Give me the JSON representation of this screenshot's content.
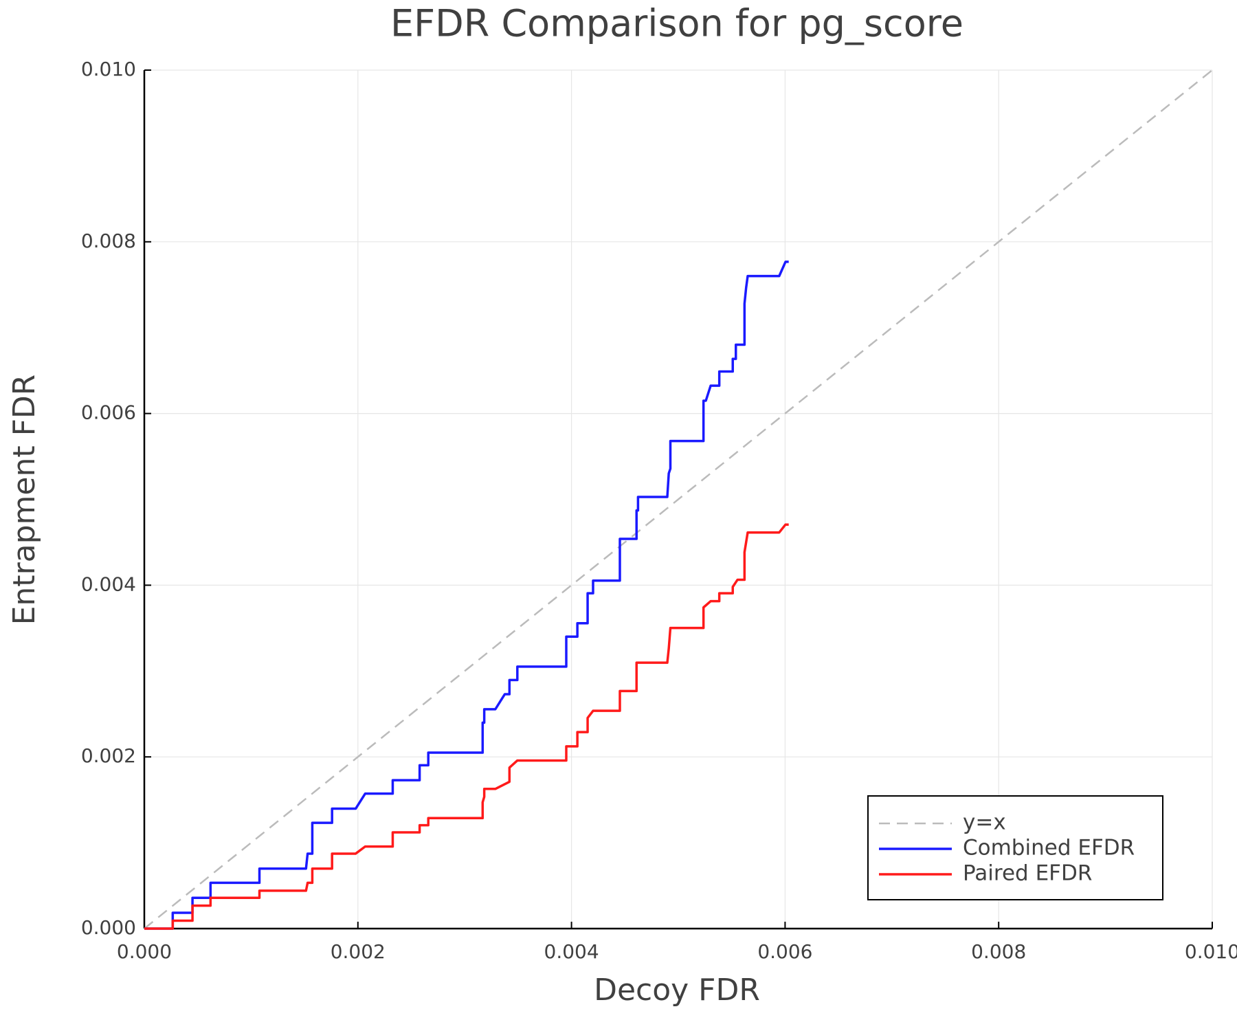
{
  "chart_data": {
    "type": "line",
    "title": "EFDR Comparison for pg_score",
    "xlabel": "Decoy FDR",
    "ylabel": "Entrapment FDR",
    "xlim": [
      0,
      0.01
    ],
    "ylim": [
      0,
      0.01
    ],
    "xticks": [
      {
        "value": 0,
        "label": "0.000"
      },
      {
        "value": 0.002,
        "label": "0.002"
      },
      {
        "value": 0.004,
        "label": "0.004"
      },
      {
        "value": 0.006,
        "label": "0.006"
      },
      {
        "value": 0.008,
        "label": "0.008"
      },
      {
        "value": 0.01,
        "label": "0.010"
      }
    ],
    "yticks": [
      {
        "value": 0,
        "label": "0.000"
      },
      {
        "value": 0.002,
        "label": "0.002"
      },
      {
        "value": 0.004,
        "label": "0.004"
      },
      {
        "value": 0.006,
        "label": "0.006"
      },
      {
        "value": 0.008,
        "label": "0.008"
      },
      {
        "value": 0.01,
        "label": "0.010"
      }
    ],
    "grid": true,
    "legend": "lower right",
    "series": [
      {
        "name": "y=x",
        "color": "#bbbbbb",
        "linestyle": "dashed",
        "x": [
          0,
          0.01
        ],
        "values": [
          0,
          0.01
        ]
      },
      {
        "name": "Combined EFDR",
        "color": "#1a1aff",
        "linestyle": "solid",
        "x": [
          0,
          0.000266,
          0.000266,
          0.000451,
          0.000451,
          0.00062,
          0.00062,
          0.001078,
          0.001078,
          0.001514,
          0.001529,
          0.001573,
          0.001573,
          0.001758,
          0.001758,
          0.001979,
          0.002068,
          0.002326,
          0.002326,
          0.002578,
          0.002578,
          0.002659,
          0.002659,
          0.003168,
          0.003168,
          0.003183,
          0.003183,
          0.003287,
          0.003375,
          0.003419,
          0.003419,
          0.003493,
          0.003493,
          0.003951,
          0.003951,
          0.004055,
          0.004055,
          0.004151,
          0.004151,
          0.004202,
          0.004202,
          0.004453,
          0.004453,
          0.004609,
          0.004609,
          0.004623,
          0.004623,
          0.004897,
          0.004911,
          0.004926,
          0.004926,
          0.005236,
          0.005236,
          0.005258,
          0.005303,
          0.005384,
          0.005384,
          0.00551,
          0.00551,
          0.005539,
          0.005539,
          0.00562,
          0.00562,
          0.005635,
          0.00565,
          0.005945,
          0.006004,
          0.006034
        ],
        "values": [
          0,
          0,
          0.000184,
          0.000184,
          0.000358,
          0.000358,
          0.000533,
          0.000533,
          0.000699,
          0.000699,
          0.000873,
          0.000873,
          0.001232,
          0.001232,
          0.001397,
          0.001397,
          0.001572,
          0.001572,
          0.001728,
          0.001728,
          0.001903,
          0.001903,
          0.00205,
          0.00205,
          0.002399,
          0.002399,
          0.002555,
          0.002555,
          0.00273,
          0.00273,
          0.002895,
          0.002895,
          0.003051,
          0.003051,
          0.003401,
          0.003401,
          0.003557,
          0.003557,
          0.003906,
          0.003906,
          0.004053,
          0.004053,
          0.00454,
          0.00454,
          0.004871,
          0.004871,
          0.005028,
          0.005028,
          0.005303,
          0.005358,
          0.00568,
          0.00568,
          0.006149,
          0.006149,
          0.006324,
          0.006324,
          0.006489,
          0.006489,
          0.006636,
          0.006636,
          0.006801,
          0.006801,
          0.007279,
          0.007463,
          0.007601,
          0.007601,
          0.007767,
          0.007767
        ]
      },
      {
        "name": "Paired EFDR",
        "color": "#ff1a1a",
        "linestyle": "solid",
        "x": [
          0,
          0.000266,
          0.000266,
          0.000451,
          0.000451,
          0.00062,
          0.00062,
          0.001078,
          0.001078,
          0.001514,
          0.001529,
          0.001573,
          0.001573,
          0.001758,
          0.001758,
          0.001979,
          0.002068,
          0.002326,
          0.002326,
          0.002578,
          0.002578,
          0.002659,
          0.002659,
          0.003168,
          0.003168,
          0.003183,
          0.003183,
          0.003287,
          0.003419,
          0.003419,
          0.003493,
          0.003951,
          0.003951,
          0.004055,
          0.004055,
          0.004151,
          0.004151,
          0.004202,
          0.004453,
          0.004453,
          0.004609,
          0.004609,
          0.004897,
          0.004911,
          0.004926,
          0.005236,
          0.005236,
          0.005303,
          0.005384,
          0.005384,
          0.00551,
          0.00551,
          0.005554,
          0.00562,
          0.00562,
          0.00565,
          0.005945,
          0.006004,
          0.006034
        ],
        "values": [
          0,
          0,
          9.2e-05,
          9.2e-05,
          0.000267,
          0.000267,
          0.000358,
          0.000358,
          0.000441,
          0.000441,
          0.000533,
          0.000533,
          0.000699,
          0.000699,
          0.000873,
          0.000873,
          0.000956,
          0.000956,
          0.001121,
          0.001121,
          0.001204,
          0.001204,
          0.001287,
          0.001287,
          0.001471,
          0.001535,
          0.001627,
          0.001627,
          0.00171,
          0.001875,
          0.001958,
          0.001958,
          0.002123,
          0.002123,
          0.002289,
          0.002289,
          0.002454,
          0.002537,
          0.002537,
          0.002767,
          0.002767,
          0.003097,
          0.003097,
          0.003263,
          0.003502,
          0.003502,
          0.003741,
          0.003814,
          0.003814,
          0.003906,
          0.003906,
          0.00398,
          0.004063,
          0.004063,
          0.004384,
          0.004614,
          0.004614,
          0.004706,
          0.004706
        ]
      }
    ]
  }
}
